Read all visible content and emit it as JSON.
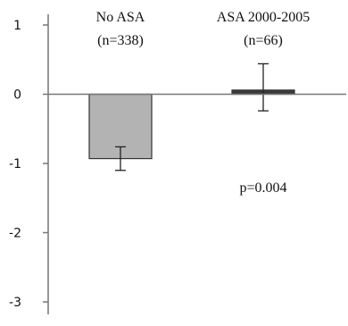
{
  "chart_data": {
    "type": "bar",
    "title": "",
    "xlabel": "",
    "ylabel": "",
    "ylim": [
      -3,
      1
    ],
    "y_ticks": [
      "1",
      "0",
      "-1",
      "-2",
      "-3"
    ],
    "y_tick_values": [
      1,
      0,
      -1,
      -2,
      -3
    ],
    "grid": false,
    "legend": "none",
    "categories": [
      {
        "line1": "No ASA",
        "line2": "(n=338)"
      },
      {
        "line1": "ASA 2000-2005",
        "line2": "(n=66)"
      }
    ],
    "values": [
      -0.93,
      0.06
    ],
    "error_low": [
      -1.1,
      -0.24
    ],
    "error_high": [
      -0.76,
      0.44
    ],
    "bar_colors": [
      "#b3b3b3",
      "#3a3a3a"
    ],
    "annotation": "p=0.004"
  }
}
